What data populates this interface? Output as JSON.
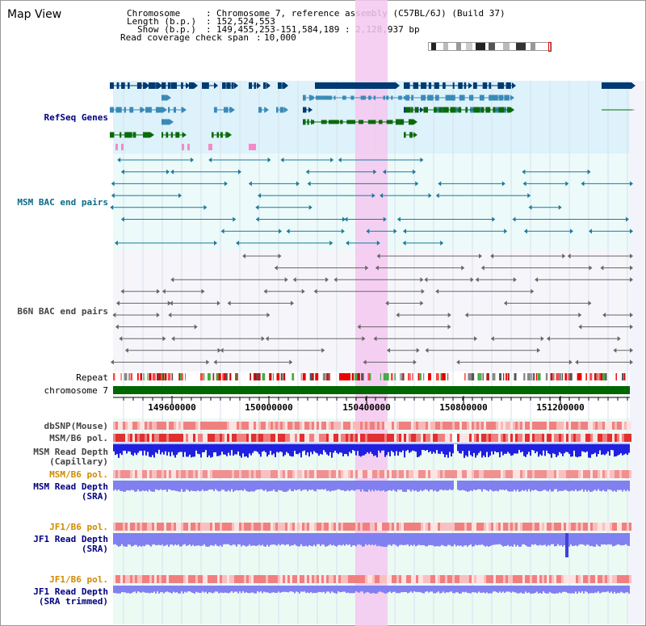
{
  "window": {
    "title": "Map View"
  },
  "header": {
    "chromosome_key": "Chromosome",
    "chromosome_value": "Chromosome 7, reference assembly (C57BL/6J) (Build 37)",
    "length_key": "Length (b.p.)",
    "length_value": "152,524,553",
    "show_key": "Show (b.p.)",
    "show_value": "149,455,253-151,584,189 : 2,128,937 bp",
    "span_key": "Read coverage check span",
    "span_value": "10,000"
  },
  "tracks": {
    "refseq": "RefSeq Genes",
    "msm_bac": "MSM BAC end pairs",
    "b6n_bac": "B6N BAC end pairs",
    "repeat": "Repeat",
    "chromosome": "chromosome 7",
    "dbsnp": "dbSNP(Mouse)",
    "msm_b6_pol_1": "MSM/B6 pol.",
    "msm_depth_cap_1": "MSM Read Depth",
    "msm_depth_cap_2": "(Capillary)",
    "msm_b6_pol_2": "MSM/B6 pol.",
    "msm_depth_sra_1": "MSM Read Depth",
    "msm_depth_sra_2": "(SRA)",
    "jf1_b6_pol_1": "JF1/B6 pol.",
    "jf1_depth_sra_1": "JF1 Read Depth",
    "jf1_depth_sra_2": "(SRA)",
    "jf1_b6_pol_2": "JF1/B6 pol.",
    "jf1_depth_trim_1": "JF1 Read Depth",
    "jf1_depth_trim_2": "(SRA trimmed)"
  },
  "axis": {
    "ticks": [
      "149600000",
      "150000000",
      "150400000",
      "150800000",
      "151200000"
    ]
  },
  "colors": {
    "refseq_dark": "#003a70",
    "refseq_mid": "#3a8ab8",
    "refseq_green": "#0a6a0a",
    "msm_bac": "#1a7a9a",
    "b6n_bac": "#666666",
    "chromosome": "#006600",
    "highlight": "#f5c8f0",
    "snp": "#f0a0a0",
    "depth_blue": "#2020e0",
    "depth_sra": "#8080f0"
  }
}
